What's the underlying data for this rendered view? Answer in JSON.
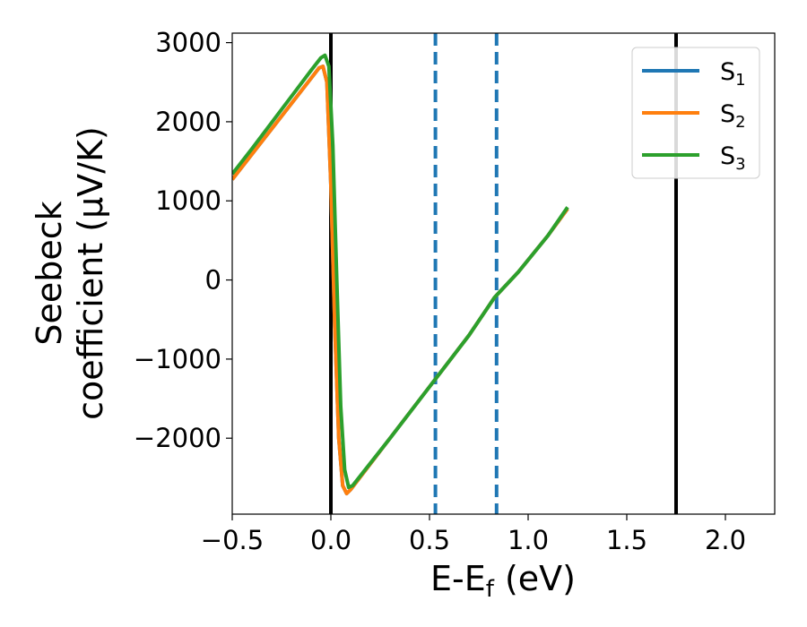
{
  "chart_data": {
    "type": "line",
    "xlabel": {
      "base": "E-E",
      "sub": "f",
      "rest": " (eV)"
    },
    "ylabel_line1": "Seebeck",
    "ylabel_line2": "coefficient  (μV/K)",
    "xlim": [
      -0.5,
      2.25
    ],
    "ylim": [
      -2960,
      3120
    ],
    "xticks": [
      {
        "value": -0.5,
        "label": "−0.5"
      },
      {
        "value": 0.0,
        "label": "0.0"
      },
      {
        "value": 0.5,
        "label": "0.5"
      },
      {
        "value": 1.0,
        "label": "1.0"
      },
      {
        "value": 1.5,
        "label": "1.5"
      },
      {
        "value": 2.0,
        "label": "2.0"
      }
    ],
    "yticks": [
      {
        "value": 3000,
        "label": "3000"
      },
      {
        "value": 2000,
        "label": "2000"
      },
      {
        "value": 1000,
        "label": "1000"
      },
      {
        "value": 0,
        "label": "0"
      },
      {
        "value": -1000,
        "label": "−1000"
      },
      {
        "value": -2000,
        "label": "−2000"
      }
    ],
    "legend_position": "top-right",
    "series": [
      {
        "name": "S",
        "sub": "1",
        "color": "#1f77b4",
        "points": [
          [
            -0.5,
            1270
          ],
          [
            -0.4,
            1590
          ],
          [
            -0.3,
            1910
          ],
          [
            -0.2,
            2230
          ],
          [
            -0.1,
            2550
          ],
          [
            -0.06,
            2680
          ],
          [
            -0.04,
            2700
          ],
          [
            -0.02,
            2500
          ],
          [
            0.0,
            1200
          ],
          [
            0.02,
            -600
          ],
          [
            0.04,
            -2000
          ],
          [
            0.06,
            -2600
          ],
          [
            0.08,
            -2700
          ],
          [
            0.1,
            -2650
          ],
          [
            0.3,
            -2000
          ],
          [
            0.5,
            -1350
          ],
          [
            0.7,
            -700
          ],
          [
            0.83,
            -220
          ],
          [
            0.95,
            100
          ],
          [
            1.1,
            560
          ],
          [
            1.2,
            900
          ]
        ]
      },
      {
        "name": "S",
        "sub": "2",
        "color": "#ff7f0e",
        "points": [
          [
            -0.5,
            1270
          ],
          [
            -0.4,
            1590
          ],
          [
            -0.3,
            1910
          ],
          [
            -0.2,
            2230
          ],
          [
            -0.1,
            2550
          ],
          [
            -0.06,
            2680
          ],
          [
            -0.04,
            2700
          ],
          [
            -0.02,
            2500
          ],
          [
            0.0,
            1200
          ],
          [
            0.02,
            -600
          ],
          [
            0.04,
            -2000
          ],
          [
            0.06,
            -2600
          ],
          [
            0.08,
            -2700
          ],
          [
            0.1,
            -2650
          ],
          [
            0.3,
            -2000
          ],
          [
            0.5,
            -1350
          ],
          [
            0.7,
            -700
          ],
          [
            0.83,
            -220
          ],
          [
            0.95,
            100
          ],
          [
            1.1,
            560
          ],
          [
            1.2,
            900
          ]
        ]
      },
      {
        "name": "S",
        "sub": "3",
        "color": "#2ca02c",
        "points": [
          [
            -0.5,
            1340
          ],
          [
            -0.4,
            1660
          ],
          [
            -0.3,
            1990
          ],
          [
            -0.2,
            2320
          ],
          [
            -0.1,
            2650
          ],
          [
            -0.05,
            2810
          ],
          [
            -0.03,
            2840
          ],
          [
            -0.01,
            2700
          ],
          [
            0.01,
            1700
          ],
          [
            0.03,
            0
          ],
          [
            0.05,
            -1600
          ],
          [
            0.07,
            -2400
          ],
          [
            0.09,
            -2620
          ],
          [
            0.11,
            -2600
          ],
          [
            0.3,
            -2000
          ],
          [
            0.5,
            -1350
          ],
          [
            0.7,
            -700
          ],
          [
            0.83,
            -220
          ],
          [
            0.95,
            100
          ],
          [
            1.1,
            560
          ],
          [
            1.2,
            920
          ]
        ]
      }
    ],
    "vlines": [
      {
        "x": 0.0,
        "style": "solid",
        "color": "#000000"
      },
      {
        "x": 1.75,
        "style": "solid",
        "color": "#000000"
      },
      {
        "x": 0.53,
        "style": "dashed",
        "color": "#1f77b4"
      },
      {
        "x": 0.84,
        "style": "dashed",
        "color": "#1f77b4"
      }
    ]
  }
}
